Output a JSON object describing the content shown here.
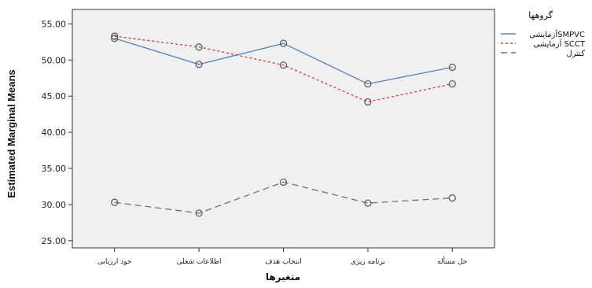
{
  "chart_data": {
    "type": "line",
    "title": "",
    "xlabel": "متغیرها",
    "ylabel": "Estimated Marginal Means",
    "ylim": [
      24,
      57
    ],
    "yticks": [
      "25.00",
      "30.00",
      "35.00",
      "40.00",
      "45.00",
      "50.00",
      "55.00"
    ],
    "ytick_values": [
      25,
      30,
      35,
      40,
      45,
      50,
      55
    ],
    "categories": [
      "خود ارزیابی",
      "اطلاعات شغلی",
      "انتخاب هدف",
      "برنامه ریزی",
      "حل مسأله"
    ],
    "grid": false,
    "background": "#f0f0f0",
    "legend": {
      "title": "گروهها",
      "placement": "right"
    },
    "series": [
      {
        "name": "آزمایشیSMPVC",
        "values": [
          53.0,
          49.4,
          52.3,
          46.7,
          49.0
        ],
        "color": "#5b7fc8",
        "style": "solid"
      },
      {
        "name": "آزمایشی SCCT",
        "values": [
          53.3,
          51.8,
          49.3,
          44.2,
          46.7
        ],
        "color": "#d9333a",
        "style": "dotted"
      },
      {
        "name": "کنترل",
        "values": [
          30.3,
          28.8,
          33.1,
          30.2,
          30.9
        ],
        "color": "#707070",
        "style": "dashed"
      }
    ],
    "marker": "open-circle"
  }
}
